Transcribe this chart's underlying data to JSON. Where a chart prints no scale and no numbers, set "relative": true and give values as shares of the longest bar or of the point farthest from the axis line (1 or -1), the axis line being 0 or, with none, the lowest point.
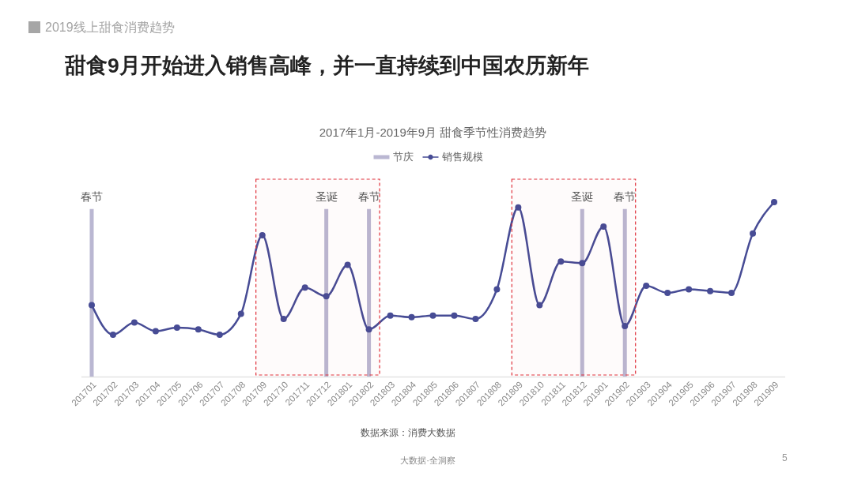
{
  "chart_data": {
    "type": "line",
    "title": "甜食9月开始进入销售高峰，并一直持续到中国农历新年",
    "subtitle": "2017年1月-2019年9月 甜食季节性消费趋势",
    "categories": [
      "201701",
      "201702",
      "201703",
      "201704",
      "201705",
      "201706",
      "201707",
      "201708",
      "201709",
      "201710",
      "201711",
      "201712",
      "201801",
      "201802",
      "201803",
      "201804",
      "201805",
      "201806",
      "201807",
      "201808",
      "201809",
      "201810",
      "201811",
      "201812",
      "201901",
      "201902",
      "201903",
      "201904",
      "201905",
      "201906",
      "201907",
      "201908",
      "201909"
    ],
    "series": [
      {
        "name": "节庆",
        "type": "bar",
        "color": "#bab7d2",
        "values": [
          0.96,
          null,
          null,
          null,
          null,
          null,
          null,
          null,
          null,
          null,
          null,
          0.96,
          null,
          0.96,
          null,
          null,
          null,
          null,
          null,
          null,
          null,
          null,
          null,
          0.96,
          null,
          0.96,
          null,
          null,
          null,
          null,
          null,
          null,
          null
        ]
      },
      {
        "name": "销售规模",
        "color": "#474c95",
        "values": [
          0.41,
          0.24,
          0.31,
          0.26,
          0.28,
          0.27,
          0.24,
          0.36,
          0.81,
          0.33,
          0.51,
          0.46,
          0.64,
          0.27,
          0.35,
          0.34,
          0.35,
          0.35,
          0.33,
          0.5,
          0.97,
          0.41,
          0.66,
          0.65,
          0.86,
          0.29,
          0.52,
          0.48,
          0.5,
          0.49,
          0.48,
          0.82,
          1
        ]
      }
    ],
    "relative": true,
    "legend": "top",
    "marker": "circle",
    "bands": [
      {
        "axis": "x",
        "from": "201709",
        "to": "201802",
        "color": "#e0303a"
      },
      {
        "axis": "x",
        "from": "201809",
        "to": "201902",
        "color": "#e0303a"
      }
    ],
    "annotations": [
      "2019线上甜食消费趋势",
      "数据来源：消费大数据",
      "大数据·全洞察",
      "5",
      {
        "text": "春节",
        "x": "201701",
        "y": 0.96
      },
      {
        "text": "圣诞",
        "x": "201712",
        "y": 0.96
      },
      {
        "text": "春节",
        "x": "201802",
        "y": 0.96
      },
      {
        "text": "圣诞",
        "x": "201812",
        "y": 0.96
      },
      {
        "text": "春节",
        "x": "201902",
        "y": 0.96
      }
    ]
  }
}
